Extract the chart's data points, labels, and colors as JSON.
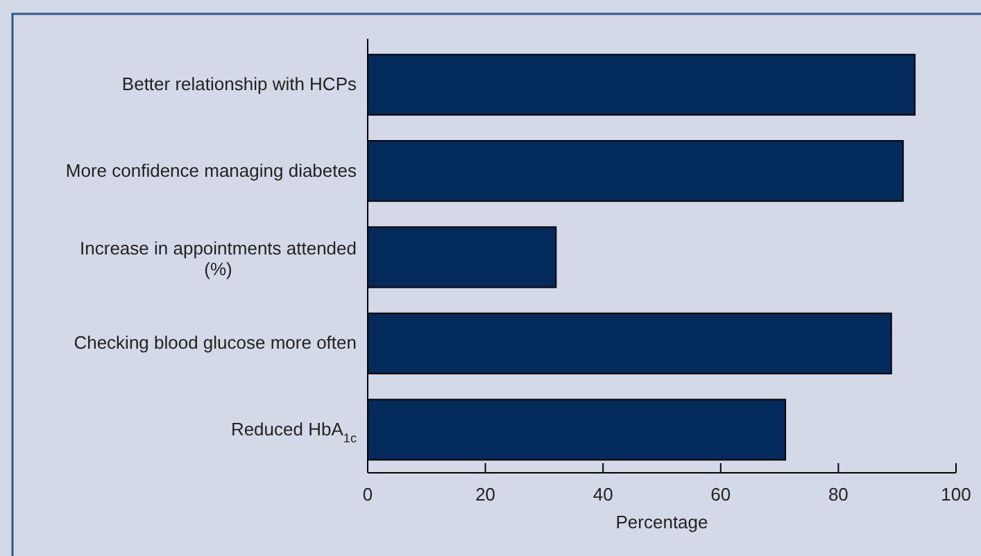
{
  "chart_data": {
    "type": "bar",
    "orientation": "horizontal",
    "xlabel": "Percentage",
    "categories": [
      "Better relationship with HCPs",
      "More confidence managing diabetes",
      "Increase in appointments attended (%)",
      "Checking blood glucose more often",
      "Reduced HbA$_{1c}$"
    ],
    "values": [
      93,
      91,
      32,
      89,
      71
    ],
    "color": "#022b5c",
    "xlim": [
      0,
      100
    ],
    "xticks": [
      0,
      20,
      40,
      60,
      80,
      100
    ],
    "grid": false
  }
}
